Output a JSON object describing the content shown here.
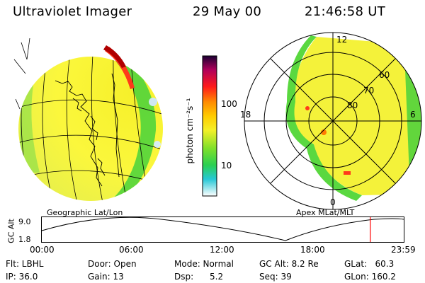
{
  "header": {
    "instrument": "Ultraviolet Imager",
    "date": "29 May 00",
    "time": "21:46:58 UT"
  },
  "colorbar": {
    "unit_label": "photon cm⁻²s⁻¹",
    "ticks": [
      "100",
      "10"
    ],
    "scale": "log"
  },
  "left_panel": {
    "caption": "Geographic Lat/Lon"
  },
  "right_panel": {
    "caption": "Apex MLat/MLT",
    "mlt_labels": {
      "top": "12",
      "left": "18",
      "right": "6",
      "bottom": "0"
    },
    "lat_labels": [
      "60",
      "70",
      "80"
    ]
  },
  "altitude_plot": {
    "ylabel": "GC Alt",
    "ymax": "9.0",
    "ymin": "1.8",
    "time_ticks": [
      "00:00",
      "06:00",
      "12:00",
      "18:00",
      "23:59"
    ],
    "marker_time": "21:46:58",
    "marker_color": "#ff0000"
  },
  "footer": {
    "filter": "Flt: LBHL",
    "ip": "IP: 36.0",
    "door": "Door: Open",
    "gain": "Gain: 13",
    "mode": "Mode: Normal",
    "dsp": "Dsp:      5.2",
    "gc_alt": "GC Alt: 8.2 Re",
    "seq": "Seq: 39",
    "glat": "GLat:   60.3",
    "glon": "GLon: 160.2"
  }
}
